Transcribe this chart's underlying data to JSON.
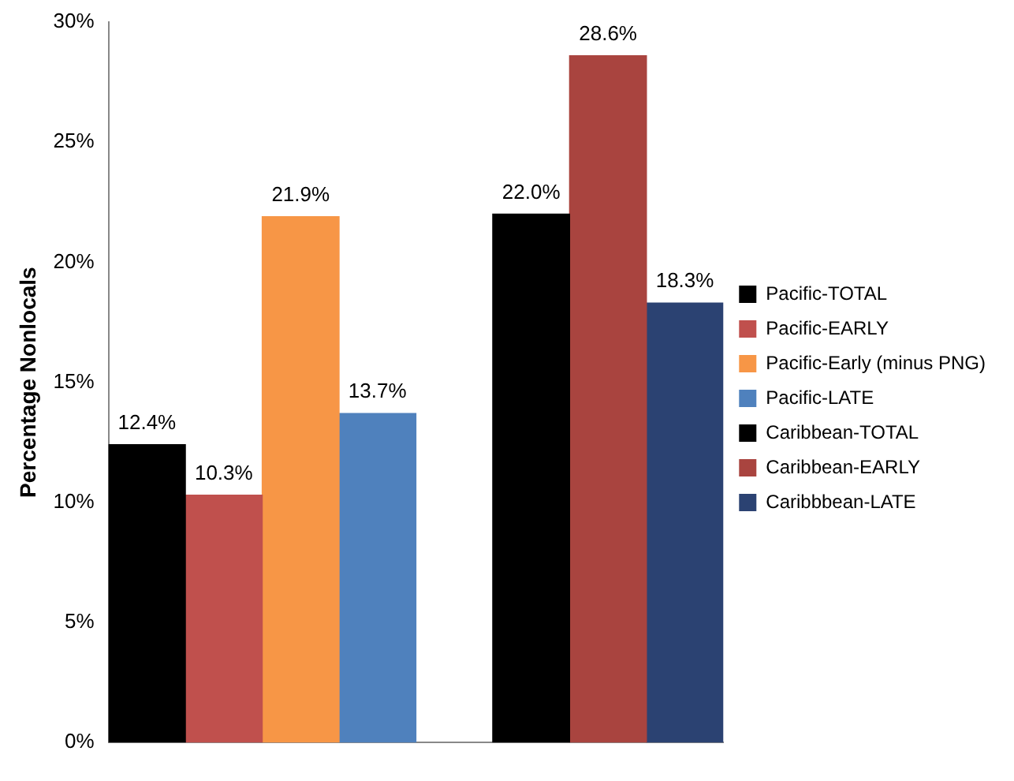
{
  "chart_data": {
    "type": "bar",
    "ylabel": "Percentage Nonlocals",
    "categories": [
      null,
      null,
      null,
      null,
      null,
      null,
      null,
      null
    ],
    "series": [
      {
        "name": "Pacific-TOTAL",
        "color": "#000000",
        "values": [
          12.4,
          null,
          null,
          null,
          null,
          null,
          null,
          null
        ],
        "value_labels": [
          "12.4%",
          null,
          null,
          null,
          null,
          null,
          null,
          null
        ]
      },
      {
        "name": "Pacific-EARLY",
        "color": "#c0504d",
        "values": [
          null,
          10.3,
          null,
          null,
          null,
          null,
          null,
          null
        ],
        "value_labels": [
          null,
          "10.3%",
          null,
          null,
          null,
          null,
          null,
          null
        ]
      },
      {
        "name": "Pacific-Early (minus PNG)",
        "color": "#f79646",
        "values": [
          null,
          null,
          21.9,
          null,
          null,
          null,
          null,
          null
        ],
        "value_labels": [
          null,
          null,
          "21.9%",
          null,
          null,
          null,
          null,
          null
        ]
      },
      {
        "name": "Pacific-LATE",
        "color": "#4f81bd",
        "values": [
          null,
          null,
          null,
          13.7,
          null,
          null,
          null,
          null
        ],
        "value_labels": [
          null,
          null,
          null,
          "13.7%",
          null,
          null,
          null,
          null
        ]
      },
      {
        "name": "Caribbean-TOTAL",
        "color": "#000000",
        "values": [
          null,
          null,
          null,
          null,
          null,
          22.0,
          null,
          null
        ],
        "value_labels": [
          null,
          null,
          null,
          null,
          null,
          "22.0%",
          null,
          null
        ]
      },
      {
        "name": "Caribbean-EARLY",
        "color": "#a9443f",
        "values": [
          null,
          null,
          null,
          null,
          null,
          null,
          28.6,
          null
        ],
        "value_labels": [
          null,
          null,
          null,
          null,
          null,
          null,
          "28.6%",
          null
        ]
      },
      {
        "name": "Caribbbean-LATE",
        "color": "#2b4272",
        "values": [
          null,
          null,
          null,
          null,
          null,
          null,
          null,
          18.3
        ],
        "value_labels": [
          null,
          null,
          null,
          null,
          null,
          null,
          null,
          "18.3%"
        ]
      }
    ],
    "ylim": [
      0,
      30
    ],
    "yticks": [
      {
        "value": 0,
        "label": "0%"
      },
      {
        "value": 5,
        "label": "5%"
      },
      {
        "value": 10,
        "label": "10%"
      },
      {
        "value": 15,
        "label": "15%"
      },
      {
        "value": 20,
        "label": "20%"
      },
      {
        "value": 25,
        "label": "25%"
      },
      {
        "value": 30,
        "label": "30%"
      }
    ],
    "grid": false,
    "legend": "right"
  }
}
